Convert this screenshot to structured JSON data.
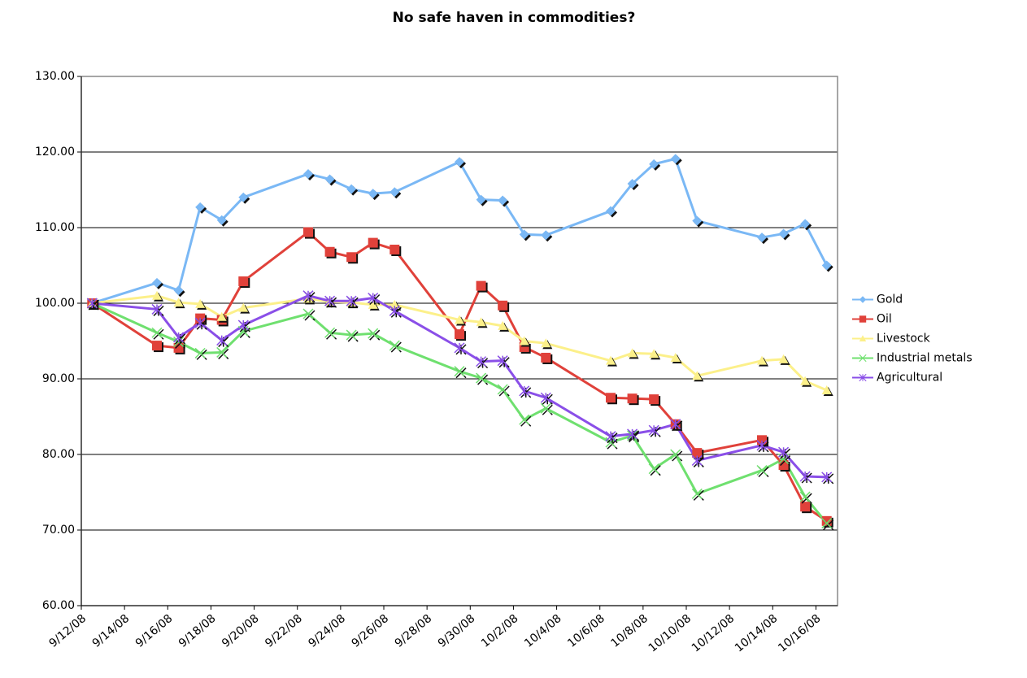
{
  "chart_data": {
    "type": "line",
    "title": "No safe haven in commodities?",
    "x": [
      "2008-09-12",
      "2008-09-15",
      "2008-09-16",
      "2008-09-17",
      "2008-09-18",
      "2008-09-19",
      "2008-09-22",
      "2008-09-23",
      "2008-09-24",
      "2008-09-25",
      "2008-09-26",
      "2008-09-29",
      "2008-09-30",
      "2008-10-01",
      "2008-10-02",
      "2008-10-03",
      "2008-10-06",
      "2008-10-07",
      "2008-10-08",
      "2008-10-09",
      "2008-10-10",
      "2008-10-13",
      "2008-10-14",
      "2008-10-15",
      "2008-10-16"
    ],
    "series": [
      {
        "name": "Gold",
        "color": "#7ab8f5",
        "marker": "diamond",
        "values": [
          100,
          102.7,
          101.7,
          112.7,
          111,
          114,
          117.1,
          116.4,
          115.1,
          114.5,
          114.7,
          118.7,
          113.7,
          113.6,
          109.1,
          109,
          112.2,
          115.8,
          118.4,
          119.1,
          110.9,
          108.7,
          109.2,
          110.5,
          105
        ]
      },
      {
        "name": "Oil",
        "color": "#e0413a",
        "marker": "square",
        "values": [
          100,
          94.4,
          94.1,
          98,
          97.8,
          102.9,
          109.4,
          106.8,
          106.1,
          108,
          107.1,
          95.9,
          102.3,
          99.7,
          94.2,
          92.8,
          87.5,
          87.4,
          87.3,
          84,
          80.2,
          81.9,
          78.6,
          73.1,
          71.2
        ]
      },
      {
        "name": "Livestock",
        "color": "#fcf08a",
        "marker": "triangle",
        "values": [
          100,
          101,
          100.1,
          99.9,
          98.2,
          99.4,
          100.6,
          100.2,
          100.1,
          99.8,
          99.8,
          97.8,
          97.5,
          97,
          95,
          94.7,
          92.4,
          93.4,
          93.3,
          92.8,
          90.4,
          92.4,
          92.6,
          89.7,
          88.5
        ]
      },
      {
        "name": "Industrial metals",
        "color": "#6fe06f",
        "marker": "x",
        "values": [
          100,
          96.1,
          94.9,
          93.4,
          93.5,
          96.3,
          98.6,
          96.1,
          95.8,
          96,
          94.4,
          91,
          90.1,
          88.6,
          84.6,
          86.1,
          81.6,
          82.5,
          78.1,
          80,
          74.8,
          77.9,
          79.4,
          74.4,
          70.9
        ]
      },
      {
        "name": "Agricultural",
        "color": "#8a4fe8",
        "marker": "star",
        "values": [
          100,
          99.2,
          95.5,
          97.4,
          95.1,
          97.1,
          101,
          100.3,
          100.3,
          100.7,
          99,
          94.1,
          92.3,
          92.4,
          88.4,
          87.5,
          82.4,
          82.7,
          83.2,
          84,
          79.2,
          81.2,
          80.3,
          77.1,
          77
        ]
      }
    ],
    "xlim": [
      "2008-09-12",
      "2008-10-17"
    ],
    "xticks": [
      {
        "value": "2008-09-12",
        "label": "9/12/08"
      },
      {
        "value": "2008-09-14",
        "label": "9/14/08"
      },
      {
        "value": "2008-09-16",
        "label": "9/16/08"
      },
      {
        "value": "2008-09-18",
        "label": "9/18/08"
      },
      {
        "value": "2008-09-20",
        "label": "9/20/08"
      },
      {
        "value": "2008-09-22",
        "label": "9/22/08"
      },
      {
        "value": "2008-09-24",
        "label": "9/24/08"
      },
      {
        "value": "2008-09-26",
        "label": "9/26/08"
      },
      {
        "value": "2008-09-28",
        "label": "9/28/08"
      },
      {
        "value": "2008-09-30",
        "label": "9/30/08"
      },
      {
        "value": "2008-10-02",
        "label": "10/2/08"
      },
      {
        "value": "2008-10-04",
        "label": "10/4/08"
      },
      {
        "value": "2008-10-06",
        "label": "10/6/08"
      },
      {
        "value": "2008-10-08",
        "label": "10/8/08"
      },
      {
        "value": "2008-10-10",
        "label": "10/10/08"
      },
      {
        "value": "2008-10-12",
        "label": "10/12/08"
      },
      {
        "value": "2008-10-14",
        "label": "10/14/08"
      },
      {
        "value": "2008-10-16",
        "label": "10/16/08"
      }
    ],
    "ylim": [
      60,
      130
    ],
    "yticks": [
      {
        "value": 60,
        "label": "60.00"
      },
      {
        "value": 70,
        "label": "70.00"
      },
      {
        "value": 80,
        "label": "80.00"
      },
      {
        "value": 90,
        "label": "90.00"
      },
      {
        "value": 100,
        "label": "100.00"
      },
      {
        "value": 110,
        "label": "110.00"
      },
      {
        "value": 120,
        "label": "120.00"
      },
      {
        "value": 130,
        "label": "130.00"
      }
    ],
    "grid": true,
    "legend": "right"
  }
}
